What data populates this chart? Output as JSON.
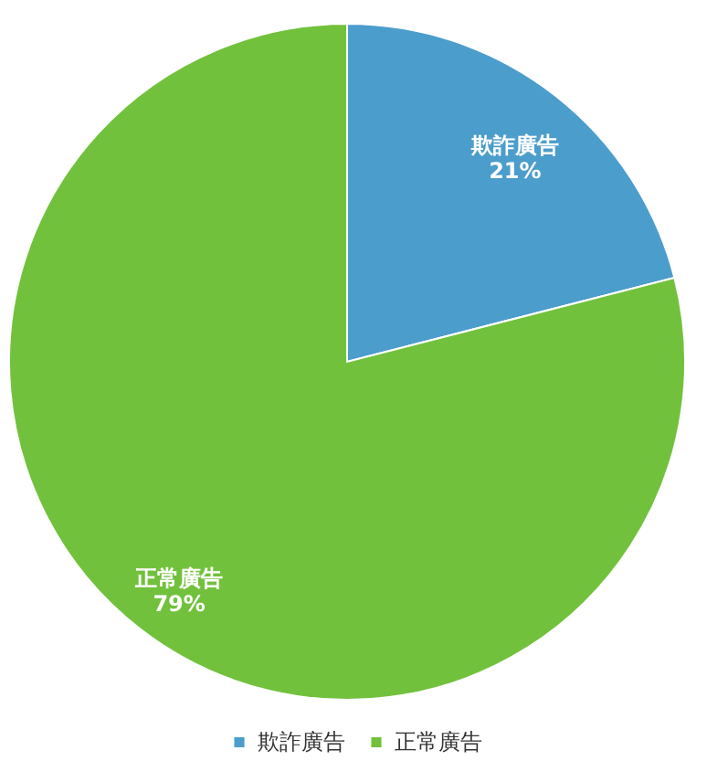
{
  "chart_data": {
    "type": "pie",
    "categories": [
      "欺詐廣告",
      "正常廣告"
    ],
    "values": [
      21,
      79
    ],
    "value_labels": [
      "21%",
      "79%"
    ],
    "colors": [
      "#4b9dcc",
      "#72c13c"
    ],
    "legend": "bottom"
  }
}
